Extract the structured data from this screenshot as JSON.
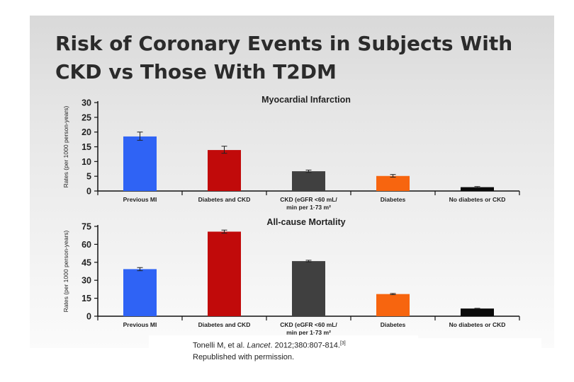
{
  "slide": {
    "title_line1": "Risk of Coronary Events in Subjects With",
    "title_line2": "CKD vs Those With T2DM",
    "citation_author": "Tonelli M, et al.",
    "citation_journal": "Lancet",
    "citation_rest": ". 2012;380:807-814.",
    "citation_ref": "[3]",
    "citation_line2": "Republished with permission."
  },
  "colors": {
    "previous_mi": "#2f63f5",
    "diabetes_ckd": "#c10a0a",
    "ckd": "#404040",
    "diabetes": "#f7650f",
    "none": "#0a0a0a"
  },
  "chart_data": [
    {
      "type": "bar",
      "title": "Myocardial Infarction",
      "ylabel": "Rates (per 1000 person-years)",
      "categories": [
        "Previous MI",
        "Diabetes and CKD",
        "CKD (eGFR <60 mL/ min per 1·73 m²",
        "Diabetes",
        "No diabetes or CKD"
      ],
      "category_lines": [
        [
          "Previous MI"
        ],
        [
          "Diabetes and CKD"
        ],
        [
          "CKD (eGFR <60 mL/",
          "min per 1·73 m²"
        ],
        [
          "Diabetes"
        ],
        [
          "No diabetes or CKD"
        ]
      ],
      "values": [
        18.5,
        13.9,
        6.7,
        5.1,
        1.3
      ],
      "error_low": [
        17.2,
        12.8,
        6.3,
        4.7,
        1.1
      ],
      "error_high": [
        20.0,
        15.2,
        7.1,
        5.6,
        1.5
      ],
      "ylim": [
        0,
        30
      ],
      "yticks": [
        0,
        5,
        10,
        15,
        20,
        25,
        30
      ],
      "bar_color_keys": [
        "previous_mi",
        "diabetes_ckd",
        "ckd",
        "diabetes",
        "none"
      ]
    },
    {
      "type": "bar",
      "title": "All-cause Mortality",
      "ylabel": "Rates (per 1000 person-years)",
      "categories": [
        "Previous MI",
        "Diabetes and CKD",
        "CKD (eGFR <60 mL/ min per 1·73 m²",
        "Diabetes",
        "No diabetes or CKD"
      ],
      "category_lines": [
        [
          "Previous MI"
        ],
        [
          "Diabetes and CKD"
        ],
        [
          "CKD (eGFR <60 mL/",
          "min per 1·73 m²"
        ],
        [
          "Diabetes"
        ],
        [
          "No diabetes or CKD"
        ]
      ],
      "values": [
        39.3,
        70.6,
        46.0,
        18.5,
        6.4
      ],
      "error_low": [
        38.0,
        69.3,
        45.3,
        18.0,
        6.2
      ],
      "error_high": [
        40.6,
        71.9,
        46.7,
        19.0,
        6.6
      ],
      "ylim": [
        0,
        75
      ],
      "yticks": [
        0,
        15,
        30,
        45,
        60,
        75
      ],
      "bar_color_keys": [
        "previous_mi",
        "diabetes_ckd",
        "ckd",
        "diabetes",
        "none"
      ]
    }
  ]
}
